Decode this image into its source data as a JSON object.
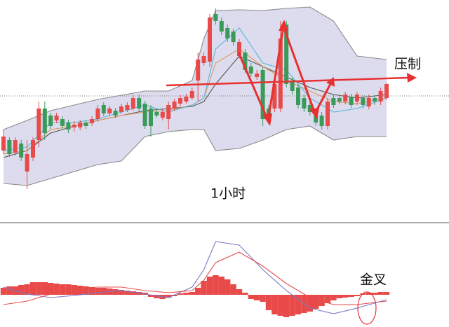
{
  "chart_data": [
    {
      "type": "candlestick",
      "up_color": "#e84a4a",
      "down_color": "#3a9a5a",
      "ylim": [
        0,
        318
      ],
      "open": [
        103,
        118,
        100,
        113,
        73,
        93,
        118,
        163,
        153,
        146,
        148,
        143,
        136,
        136,
        143,
        142,
        148,
        168,
        156,
        160,
        158,
        161,
        163,
        178,
        170,
        163,
        158,
        150,
        148,
        163,
        170,
        173,
        178,
        203,
        228,
        230,
        298,
        288,
        278,
        273,
        238,
        243,
        223,
        208,
        218,
        163,
        163,
        163,
        283,
        203,
        193,
        178,
        168,
        153,
        153,
        138,
        178,
        178,
        173,
        180,
        173,
        178,
        166,
        178,
        173,
        178
      ],
      "high": [
        133,
        122,
        122,
        118,
        118,
        122,
        173,
        173,
        157,
        157,
        152,
        147,
        145,
        147,
        146,
        152,
        168,
        172,
        167,
        164,
        170,
        172,
        183,
        183,
        174,
        168,
        162,
        162,
        173,
        177,
        182,
        184,
        193,
        243,
        243,
        298,
        306,
        293,
        283,
        277,
        262,
        248,
        228,
        218,
        223,
        168,
        203,
        288,
        288,
        208,
        198,
        183,
        172,
        158,
        158,
        178,
        182,
        182,
        187,
        184,
        187,
        182,
        183,
        182,
        193,
        200
      ],
      "low": [
        98,
        94,
        96,
        88,
        48,
        88,
        108,
        118,
        134,
        142,
        134,
        128,
        130,
        132,
        134,
        138,
        144,
        152,
        152,
        149,
        155,
        158,
        160,
        158,
        134,
        123,
        150,
        146,
        133,
        160,
        166,
        170,
        175,
        173,
        224,
        223,
        283,
        268,
        258,
        253,
        234,
        214,
        208,
        204,
        138,
        143,
        158,
        158,
        193,
        183,
        163,
        158,
        153,
        138,
        133,
        133,
        164,
        169,
        169,
        164,
        168,
        163,
        162,
        168,
        168,
        175
      ],
      "close": [
        123,
        98,
        118,
        93,
        98,
        118,
        163,
        128,
        138,
        153,
        138,
        133,
        140,
        143,
        138,
        148,
        163,
        156,
        163,
        153,
        166,
        168,
        178,
        163,
        138,
        138,
        153,
        158,
        168,
        173,
        178,
        180,
        188,
        233,
        238,
        293,
        288,
        273,
        263,
        258,
        258,
        218,
        213,
        213,
        148,
        148,
        198,
        263,
        198,
        188,
        168,
        163,
        158,
        143,
        138,
        173,
        168,
        173,
        183,
        168,
        183,
        168,
        178,
        173,
        188,
        198
      ],
      "band_color": "#dcdcee",
      "series": [
        {
          "color": "#8a8a8a",
          "x": [
            0,
            4,
            8,
            12,
            16,
            20,
            24,
            28,
            32,
            34,
            36,
            40,
            44,
            48,
            52,
            56,
            60,
            65
          ],
          "values": [
            133,
            146,
            160,
            168,
            176,
            182,
            188,
            188,
            203,
            263,
            303,
            304,
            303,
            306,
            308,
            288,
            238,
            233
          ]
        },
        {
          "color": "#8a8a8a",
          "x": [
            0,
            4,
            8,
            12,
            16,
            20,
            24,
            28,
            32,
            34,
            36,
            40,
            44,
            48,
            52,
            56,
            60,
            65
          ],
          "values": [
            56,
            53,
            63,
            73,
            83,
            88,
            123,
            130,
            133,
            133,
            103,
            106,
            118,
            133,
            138,
            118,
            123,
            123
          ]
        },
        {
          "color": "#555555",
          "x": [
            0,
            4,
            8,
            12,
            16,
            20,
            24,
            28,
            32,
            34,
            36,
            40,
            44,
            48,
            52,
            56,
            60,
            65
          ],
          "values": [
            93,
            103,
            128,
            138,
            146,
            153,
            160,
            163,
            166,
            173,
            198,
            238,
            223,
            208,
            193,
            183,
            178,
            183
          ]
        },
        {
          "color": "#e0965a",
          "x": [
            0,
            4,
            8,
            12,
            16,
            20,
            24,
            28,
            32,
            34,
            36,
            40,
            44,
            48,
            52,
            56,
            60,
            65
          ],
          "values": [
            98,
            103,
            133,
            138,
            146,
            153,
            158,
            160,
            168,
            178,
            228,
            248,
            223,
            203,
            188,
            173,
            170,
            178
          ]
        },
        {
          "color": "#5ab4dc",
          "x": [
            0,
            4,
            8,
            12,
            16,
            20,
            24,
            28,
            32,
            34,
            36,
            40,
            44,
            48,
            52,
            56,
            60,
            65
          ],
          "values": [
            103,
            108,
            143,
            143,
            148,
            158,
            168,
            158,
            168,
            178,
            248,
            278,
            228,
            218,
            178,
            158,
            163,
            178
          ]
        }
      ],
      "reference_line": 181,
      "annotations": [
        {
          "text": "压制"
        },
        {
          "text": "1小时"
        }
      ]
    },
    {
      "type": "macd",
      "ylim": [
        -46,
        103
      ],
      "up_color": "#e84a4a",
      "down_color": "#e84a4a",
      "histogram": [
        10,
        12,
        12,
        14,
        15,
        18,
        18,
        18,
        17,
        16,
        15,
        15,
        14,
        13,
        12,
        11,
        10,
        10,
        9,
        8,
        7,
        6,
        5,
        4,
        3,
        -3,
        -5,
        -6,
        -4,
        -2,
        2,
        3,
        4,
        10,
        20,
        26,
        28,
        26,
        22,
        15,
        8,
        3,
        -6,
        -8,
        -10,
        -22,
        -28,
        -30,
        -32,
        -30,
        -28,
        -26,
        -24,
        -20,
        -16,
        -12,
        -8,
        -5,
        -4,
        -3,
        -2,
        2,
        3,
        3,
        4,
        4
      ],
      "series": [
        {
          "color": "#7a78c8",
          "x": [
            0,
            4,
            8,
            12,
            16,
            20,
            24,
            28,
            32,
            34,
            36,
            40,
            44,
            48,
            52,
            56,
            60,
            65
          ],
          "values": [
            11,
            1,
            -4,
            -1,
            3,
            6,
            1,
            -4,
            11,
            36,
            76,
            71,
            36,
            6,
            -19,
            -27,
            -19,
            -7
          ]
        },
        {
          "color": "#e84a4a",
          "x": [
            0,
            4,
            8,
            12,
            16,
            20,
            24,
            28,
            32,
            34,
            36,
            40,
            44,
            48,
            52,
            56,
            60,
            65
          ],
          "values": [
            -14,
            -9,
            1,
            9,
            11,
            11,
            6,
            3,
            6,
            21,
            46,
            61,
            41,
            16,
            -4,
            -14,
            -14,
            -9
          ]
        }
      ],
      "annotations": [
        {
          "text": "金叉"
        }
      ]
    }
  ]
}
